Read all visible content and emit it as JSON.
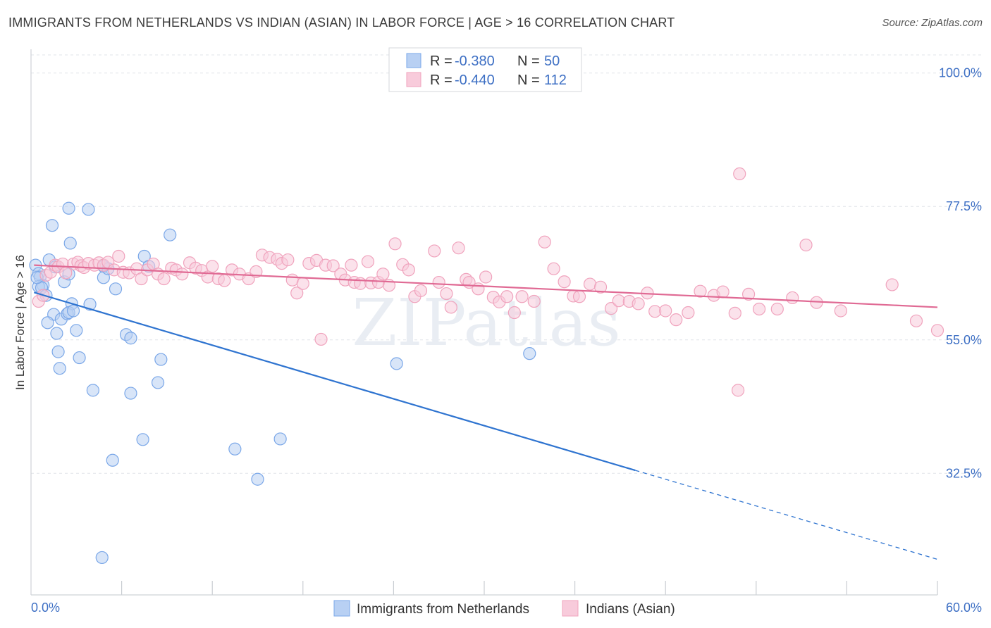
{
  "header": {
    "title": "IMMIGRANTS FROM NETHERLANDS VS INDIAN (ASIAN) IN LABOR FORCE | AGE > 16 CORRELATION CHART",
    "source": "Source: ZipAtlas.com"
  },
  "watermark": "ZIPatlas",
  "legend_top": {
    "rows": [
      {
        "r_label": "R =",
        "r_value": "-0.380",
        "n_label": "N =",
        "n_value": "50"
      },
      {
        "r_label": "R =",
        "r_value": "-0.440",
        "n_label": "N =",
        "n_value": "112"
      }
    ]
  },
  "legend_bottom": {
    "items": [
      "Immigrants from Netherlands",
      "Indians (Asian)"
    ]
  },
  "chart_data": {
    "type": "scatter",
    "ylabel": "In Labor Force | Age > 16",
    "xlim": [
      0,
      60
    ],
    "ylim": [
      12,
      104
    ],
    "y_ticks": [
      {
        "value": 100,
        "label": "100.0%"
      },
      {
        "value": 77.5,
        "label": "77.5%"
      },
      {
        "value": 55,
        "label": "55.0%"
      },
      {
        "value": 32.5,
        "label": "32.5%"
      }
    ],
    "x_tick_labels": {
      "left": "0.0%",
      "right": "60.0%"
    },
    "x_minor_ticks": [
      6,
      12,
      18,
      24,
      30,
      36,
      42,
      48,
      54,
      60
    ],
    "grid": true,
    "series": [
      {
        "name": "Immigrants from Netherlands",
        "color": "#7aa7e8",
        "fill": "#b8d0f3",
        "line_color": "#2f74d0",
        "trend": {
          "x0": 0.2,
          "y0": 63.0,
          "x1": 40.0,
          "y1": 33.0,
          "x_dash_end": 60.0,
          "y_dash_end": 18.0
        },
        "points": [
          [
            0.3,
            67.6
          ],
          [
            0.5,
            66.2
          ],
          [
            0.6,
            65.6
          ],
          [
            0.8,
            64.2
          ],
          [
            0.5,
            64.0
          ],
          [
            0.7,
            63.8
          ],
          [
            1.0,
            62.5
          ],
          [
            1.2,
            68.5
          ],
          [
            1.4,
            74.3
          ],
          [
            1.6,
            67.3
          ],
          [
            1.5,
            59.3
          ],
          [
            1.1,
            57.9
          ],
          [
            1.7,
            56.1
          ],
          [
            1.8,
            53.0
          ],
          [
            1.9,
            50.2
          ],
          [
            2.0,
            58.5
          ],
          [
            2.2,
            64.8
          ],
          [
            2.5,
            66.1
          ],
          [
            2.6,
            71.3
          ],
          [
            2.7,
            61.1
          ],
          [
            2.4,
            59.4
          ],
          [
            2.5,
            59.6
          ],
          [
            2.8,
            59.9
          ],
          [
            3.0,
            56.6
          ],
          [
            3.2,
            52.0
          ],
          [
            2.5,
            77.2
          ],
          [
            3.8,
            77.0
          ],
          [
            3.9,
            61.0
          ],
          [
            4.1,
            46.5
          ],
          [
            4.8,
            67.4
          ],
          [
            4.8,
            65.5
          ],
          [
            5.1,
            67.0
          ],
          [
            5.4,
            34.7
          ],
          [
            5.6,
            63.6
          ],
          [
            6.3,
            55.9
          ],
          [
            6.6,
            55.3
          ],
          [
            6.6,
            46.0
          ],
          [
            7.4,
            38.2
          ],
          [
            7.5,
            69.1
          ],
          [
            7.8,
            67.4
          ],
          [
            8.4,
            47.8
          ],
          [
            8.6,
            51.7
          ],
          [
            9.2,
            72.7
          ],
          [
            13.5,
            36.6
          ],
          [
            15.0,
            31.5
          ],
          [
            16.5,
            38.3
          ],
          [
            24.2,
            51.0
          ],
          [
            33.0,
            52.7
          ],
          [
            4.7,
            18.3
          ],
          [
            0.4,
            65.5
          ]
        ]
      },
      {
        "name": "Indians (Asian)",
        "color": "#f0a3bd",
        "fill": "#f8cbdb",
        "line_color": "#e06a94",
        "trend": {
          "x0": 0.2,
          "y0": 67.6,
          "x1": 60.0,
          "y1": 60.5
        },
        "points": [
          [
            0.5,
            61.5
          ],
          [
            0.8,
            62.5
          ],
          [
            1.0,
            65.9
          ],
          [
            1.3,
            66.4
          ],
          [
            1.6,
            67.6
          ],
          [
            1.8,
            67.3
          ],
          [
            2.1,
            67.8
          ],
          [
            2.3,
            66.3
          ],
          [
            2.8,
            67.8
          ],
          [
            3.1,
            68.1
          ],
          [
            3.3,
            67.5
          ],
          [
            3.5,
            67.2
          ],
          [
            3.8,
            67.9
          ],
          [
            4.2,
            67.6
          ],
          [
            4.5,
            68.0
          ],
          [
            4.8,
            67.6
          ],
          [
            5.1,
            68.1
          ],
          [
            5.5,
            66.8
          ],
          [
            5.8,
            69.1
          ],
          [
            6.1,
            66.4
          ],
          [
            6.5,
            66.3
          ],
          [
            7.0,
            67.0
          ],
          [
            7.3,
            65.3
          ],
          [
            7.7,
            66.8
          ],
          [
            8.1,
            67.8
          ],
          [
            8.4,
            66.1
          ],
          [
            8.8,
            65.3
          ],
          [
            9.3,
            67.1
          ],
          [
            9.6,
            66.8
          ],
          [
            10.0,
            66.1
          ],
          [
            10.5,
            68.0
          ],
          [
            10.9,
            67.1
          ],
          [
            11.3,
            66.7
          ],
          [
            11.7,
            65.6
          ],
          [
            12.0,
            67.4
          ],
          [
            12.4,
            65.3
          ],
          [
            12.8,
            65.0
          ],
          [
            13.3,
            66.8
          ],
          [
            13.8,
            66.1
          ],
          [
            14.4,
            65.3
          ],
          [
            14.9,
            66.5
          ],
          [
            15.3,
            69.3
          ],
          [
            15.8,
            68.9
          ],
          [
            16.3,
            68.6
          ],
          [
            16.6,
            67.9
          ],
          [
            17.0,
            68.5
          ],
          [
            17.3,
            65.1
          ],
          [
            17.6,
            62.9
          ],
          [
            18.0,
            64.5
          ],
          [
            18.4,
            67.9
          ],
          [
            18.9,
            68.4
          ],
          [
            19.2,
            55.1
          ],
          [
            19.5,
            67.6
          ],
          [
            20.0,
            67.5
          ],
          [
            20.5,
            66.1
          ],
          [
            20.8,
            65.1
          ],
          [
            21.2,
            67.6
          ],
          [
            21.4,
            64.7
          ],
          [
            21.8,
            64.5
          ],
          [
            22.3,
            68.2
          ],
          [
            22.5,
            64.6
          ],
          [
            23.0,
            64.7
          ],
          [
            23.3,
            66.1
          ],
          [
            23.7,
            64.2
          ],
          [
            24.1,
            71.2
          ],
          [
            24.6,
            67.7
          ],
          [
            25.0,
            66.8
          ],
          [
            25.4,
            62.3
          ],
          [
            25.8,
            63.3
          ],
          [
            26.7,
            70.0
          ],
          [
            27.0,
            64.7
          ],
          [
            27.5,
            62.8
          ],
          [
            27.8,
            60.5
          ],
          [
            28.3,
            70.5
          ],
          [
            28.8,
            65.2
          ],
          [
            29.0,
            64.7
          ],
          [
            29.6,
            63.6
          ],
          [
            30.1,
            65.6
          ],
          [
            30.6,
            62.2
          ],
          [
            31.0,
            61.4
          ],
          [
            31.5,
            62.3
          ],
          [
            32.0,
            59.6
          ],
          [
            32.5,
            62.3
          ],
          [
            33.3,
            61.5
          ],
          [
            34.0,
            71.5
          ],
          [
            34.6,
            67.0
          ],
          [
            35.3,
            64.8
          ],
          [
            35.9,
            62.4
          ],
          [
            36.3,
            62.3
          ],
          [
            37.0,
            64.4
          ],
          [
            37.7,
            63.9
          ],
          [
            38.4,
            60.3
          ],
          [
            38.9,
            61.6
          ],
          [
            39.6,
            61.5
          ],
          [
            40.2,
            61.1
          ],
          [
            40.8,
            62.9
          ],
          [
            41.3,
            59.8
          ],
          [
            42.0,
            59.9
          ],
          [
            42.7,
            58.4
          ],
          [
            43.5,
            59.6
          ],
          [
            44.3,
            63.2
          ],
          [
            45.2,
            62.5
          ],
          [
            45.8,
            63.1
          ],
          [
            46.6,
            59.5
          ],
          [
            47.5,
            62.7
          ],
          [
            48.2,
            60.2
          ],
          [
            49.4,
            60.2
          ],
          [
            50.4,
            62.1
          ],
          [
            52.0,
            61.3
          ],
          [
            53.6,
            59.9
          ],
          [
            57.0,
            64.3
          ],
          [
            58.6,
            58.2
          ],
          [
            60.0,
            56.6
          ],
          [
            46.8,
            46.5
          ],
          [
            46.9,
            83.0
          ],
          [
            51.3,
            71.0
          ]
        ]
      }
    ]
  }
}
